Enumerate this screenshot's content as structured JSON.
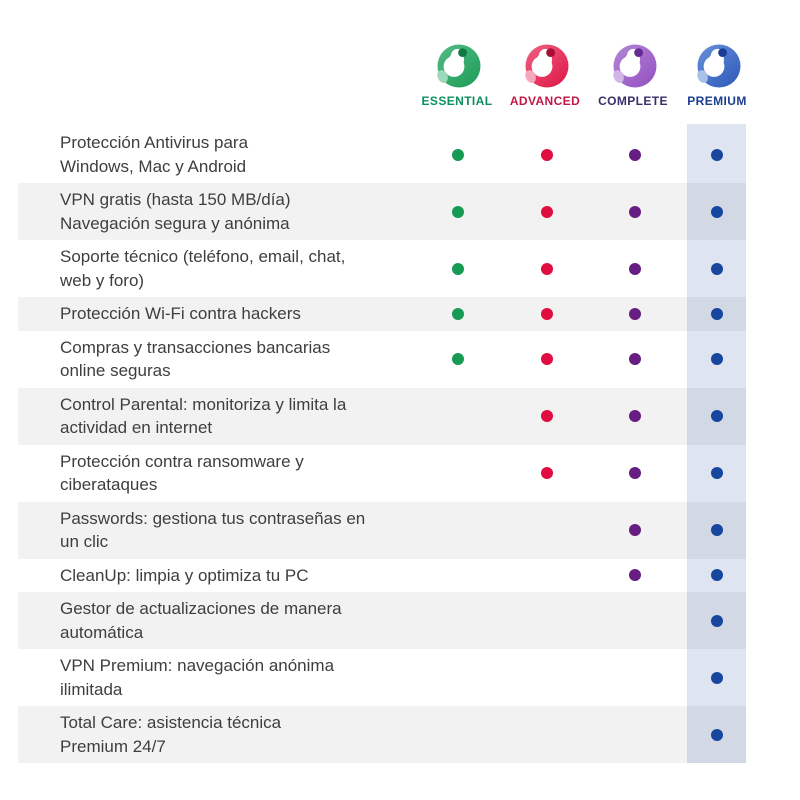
{
  "header": {
    "plans": [
      {
        "id": "essential",
        "label": "ESSENTIAL",
        "label_color": "#0e8f5f",
        "logo_main": "#1f9d58",
        "logo_grad": "#55bb87",
        "logo_dark": "#0c7a42",
        "logo_light": "#9ed8bb",
        "dot_color": "#179a54",
        "logo_icon": "panda-logo-green"
      },
      {
        "id": "advanced",
        "label": "ADVANCED",
        "label_color": "#c31745",
        "logo_main": "#de1a48",
        "logo_grad": "#ef6183",
        "logo_dark": "#a80e34",
        "logo_light": "#f5a8bb",
        "dot_color": "#e00d40",
        "logo_icon": "panda-logo-red"
      },
      {
        "id": "complete",
        "label": "COMPLETE",
        "label_color": "#3a2f6b",
        "logo_main": "#9552c1",
        "logo_grad": "#b486d6",
        "logo_dark": "#642b92",
        "logo_light": "#d3b5e7",
        "dot_color": "#661e82",
        "logo_icon": "panda-logo-purple"
      },
      {
        "id": "premium",
        "label": "PREMIUM",
        "label_color": "#1b3e8f",
        "logo_main": "#2f5cba",
        "logo_grad": "#6890da",
        "logo_dark": "#1a3c94",
        "logo_light": "#a8c0ea",
        "dot_color": "#17469e",
        "logo_icon": "panda-logo-blue"
      }
    ]
  },
  "table": {
    "highlight_color": "rgba(30,70,150,0.14)",
    "row_alt_color": "#f2f2f2",
    "text_color": "#3e3e3e",
    "rows": [
      {
        "feature": "Protección Antivirus para\nWindows, Mac y Android",
        "plans": [
          true,
          true,
          true,
          true
        ]
      },
      {
        "feature": "VPN gratis (hasta 150 MB/día)\nNavegación segura y anónima",
        "plans": [
          true,
          true,
          true,
          true
        ]
      },
      {
        "feature": "Soporte técnico (teléfono, email, chat,\nweb y foro)",
        "plans": [
          true,
          true,
          true,
          true
        ]
      },
      {
        "feature": "Protección Wi-Fi contra hackers",
        "plans": [
          true,
          true,
          true,
          true
        ]
      },
      {
        "feature": "Compras y transacciones bancarias\nonline seguras",
        "plans": [
          true,
          true,
          true,
          true
        ]
      },
      {
        "feature": "Control Parental: monitoriza y limita la\nactividad en internet",
        "plans": [
          false,
          true,
          true,
          true
        ]
      },
      {
        "feature": "Protección contra ransomware y\nciberataques",
        "plans": [
          false,
          true,
          true,
          true
        ]
      },
      {
        "feature": "Passwords: gestiona tus contraseñas en\nun clic",
        "plans": [
          false,
          false,
          true,
          true
        ]
      },
      {
        "feature": "CleanUp: limpia y optimiza tu PC",
        "plans": [
          false,
          false,
          true,
          true
        ]
      },
      {
        "feature": "Gestor de actualizaciones de manera\nautomática",
        "plans": [
          false,
          false,
          false,
          true
        ]
      },
      {
        "feature": "VPN Premium: navegación anónima\nilimitada",
        "plans": [
          false,
          false,
          false,
          true
        ]
      },
      {
        "feature": "Total Care: asistencia técnica\nPremium 24/7",
        "plans": [
          false,
          false,
          false,
          true
        ]
      }
    ]
  }
}
